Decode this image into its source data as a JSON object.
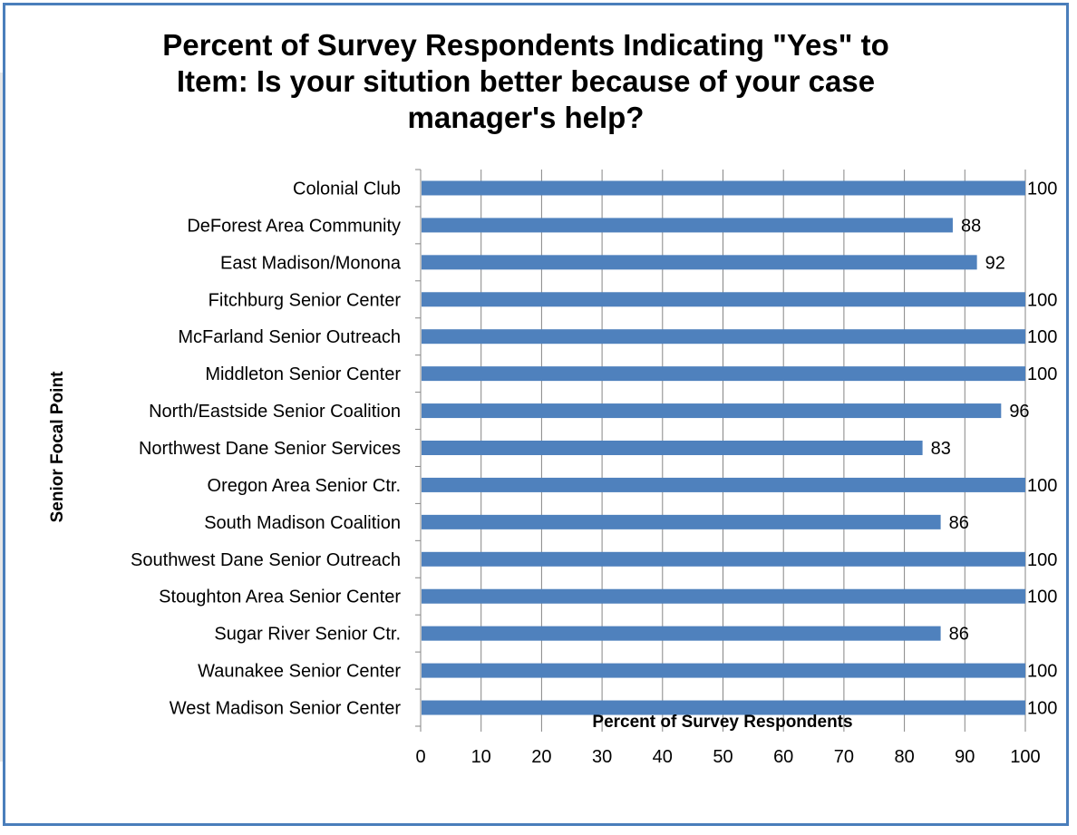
{
  "chart_data": {
    "type": "bar",
    "orientation": "horizontal",
    "title": "Percent of Survey Respondents Indicating \"Yes\" to Item:  Is your situtiton better because of your case manager's help?",
    "title_lines": [
      "Percent of Survey Respondents Indicating \"Yes\" to",
      "Item:  Is your sitution better because of your case",
      "manager's help?"
    ],
    "xlabel": "Percent of Survey Respondents",
    "ylabel": "Senior Focal Point",
    "xlim": [
      0,
      100
    ],
    "xticks": [
      "0",
      "10",
      "20",
      "30",
      "40",
      "50",
      "60",
      "70",
      "80",
      "90",
      "100"
    ],
    "grid": "vertical",
    "legend": "none",
    "bar_color": "#4f81bd",
    "categories": [
      "Colonial Club",
      "DeForest Area Community",
      "East Madison/Monona",
      "Fitchburg Senior Center",
      "McFarland Senior Outreach",
      "Middleton Senior Center",
      "North/Eastside Senior Coalition",
      "Northwest Dane Senior Services",
      "Oregon Area Senior Ctr.",
      "South Madison Coalition",
      "Southwest Dane Senior Outreach",
      "Stoughton Area Senior Center",
      "Sugar River Senior Ctr.",
      "Waunakee Senior Center",
      "West Madison Senior Center"
    ],
    "values": [
      100,
      88,
      92,
      100,
      100,
      100,
      96,
      83,
      100,
      86,
      100,
      100,
      86,
      100,
      100
    ]
  }
}
